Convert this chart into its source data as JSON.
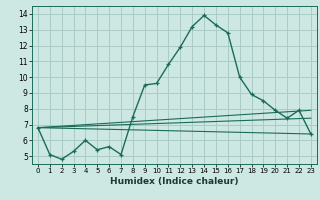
{
  "xlabel": "Humidex (Indice chaleur)",
  "background_color": "#cde8e2",
  "grid_color": "#aaccc6",
  "line_color": "#1a6b5a",
  "xlim": [
    -0.5,
    23.5
  ],
  "ylim": [
    4.5,
    14.5
  ],
  "xticks": [
    0,
    1,
    2,
    3,
    4,
    5,
    6,
    7,
    8,
    9,
    10,
    11,
    12,
    13,
    14,
    15,
    16,
    17,
    18,
    19,
    20,
    21,
    22,
    23
  ],
  "yticks": [
    5,
    6,
    7,
    8,
    9,
    10,
    11,
    12,
    13,
    14
  ],
  "main_x": [
    0,
    1,
    2,
    3,
    4,
    5,
    6,
    7,
    8,
    9,
    10,
    11,
    12,
    13,
    14,
    15,
    16,
    17,
    18,
    19,
    20,
    21,
    22,
    23
  ],
  "main_y": [
    6.8,
    5.1,
    4.8,
    5.3,
    6.0,
    5.4,
    5.6,
    5.1,
    7.5,
    9.5,
    9.6,
    10.8,
    11.9,
    13.2,
    13.9,
    13.3,
    12.8,
    10.0,
    8.9,
    8.5,
    7.9,
    7.4,
    7.9,
    6.4
  ],
  "straight_lines": [
    {
      "x": [
        0,
        23
      ],
      "y": [
        6.8,
        6.4
      ]
    },
    {
      "x": [
        0,
        23
      ],
      "y": [
        6.8,
        7.4
      ]
    },
    {
      "x": [
        0,
        23
      ],
      "y": [
        6.8,
        7.9
      ]
    }
  ]
}
